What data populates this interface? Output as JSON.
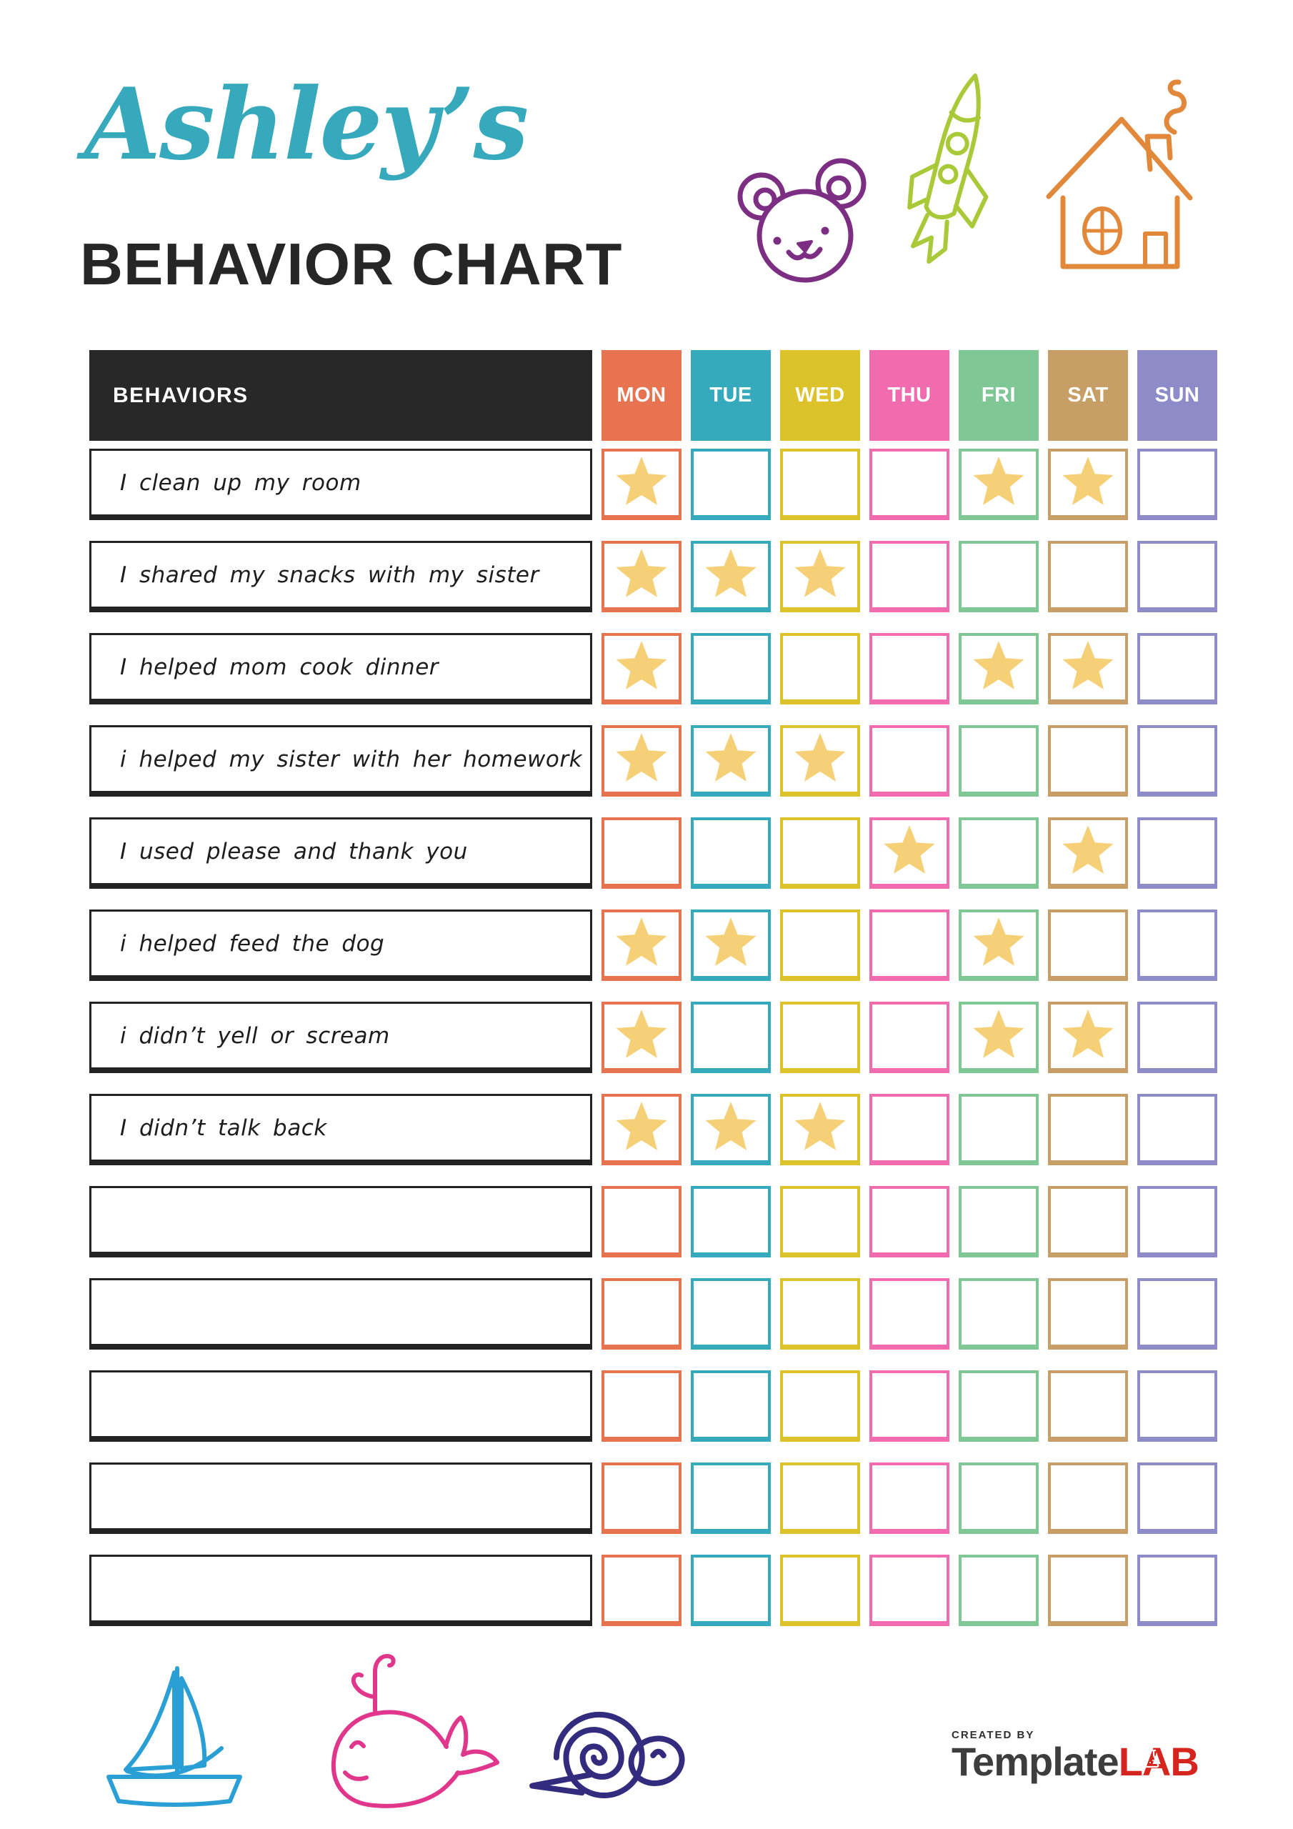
{
  "header": {
    "name_possessive": "Ashley’s",
    "title": "BEHAVIOR CHART"
  },
  "decorations": {
    "top_icons": [
      "bear-doodle",
      "rocket-doodle",
      "house-doodle"
    ],
    "bottom_icons": [
      "sailboat-doodle",
      "whale-doodle",
      "snail-doodle"
    ],
    "colors": {
      "title": "#36a9bc",
      "bear": "#7c2e83",
      "rocket": "#a9c938",
      "house": "#e2883b",
      "boat": "#2a9fd6",
      "whale": "#e0368c",
      "snail": "#332c7e"
    }
  },
  "table": {
    "behaviors_header": "BEHAVIORS",
    "header_bg": "#282828",
    "star_color": "#f5d077",
    "days": [
      {
        "label": "MON",
        "color": "#e87350"
      },
      {
        "label": "TUE",
        "color": "#35aabc"
      },
      {
        "label": "WED",
        "color": "#dcc32b"
      },
      {
        "label": "THU",
        "color": "#f16bae"
      },
      {
        "label": "FRI",
        "color": "#7fc795"
      },
      {
        "label": "SAT",
        "color": "#c79e66"
      },
      {
        "label": "SUN",
        "color": "#8d8cc8"
      }
    ],
    "rows": [
      {
        "label": "I clean up my room",
        "stars": [
          1,
          0,
          0,
          0,
          1,
          1,
          0
        ]
      },
      {
        "label": "I shared my snacks with my sister",
        "stars": [
          1,
          1,
          1,
          0,
          0,
          0,
          0
        ]
      },
      {
        "label": "I helped mom cook dinner",
        "stars": [
          1,
          0,
          0,
          0,
          1,
          1,
          0
        ]
      },
      {
        "label": "i helped my sister with her homework",
        "stars": [
          1,
          1,
          1,
          0,
          0,
          0,
          0
        ]
      },
      {
        "label": "I used please and thank you",
        "stars": [
          0,
          0,
          0,
          1,
          0,
          1,
          0
        ]
      },
      {
        "label": "i helped feed the dog",
        "stars": [
          1,
          1,
          0,
          0,
          1,
          0,
          0
        ]
      },
      {
        "label": "i didn’t yell or scream",
        "stars": [
          1,
          0,
          0,
          0,
          1,
          1,
          0
        ]
      },
      {
        "label": "I didn’t talk back",
        "stars": [
          1,
          1,
          1,
          0,
          0,
          0,
          0
        ]
      },
      {
        "label": "",
        "stars": [
          0,
          0,
          0,
          0,
          0,
          0,
          0
        ]
      },
      {
        "label": "",
        "stars": [
          0,
          0,
          0,
          0,
          0,
          0,
          0
        ]
      },
      {
        "label": "",
        "stars": [
          0,
          0,
          0,
          0,
          0,
          0,
          0
        ]
      },
      {
        "label": "",
        "stars": [
          0,
          0,
          0,
          0,
          0,
          0,
          0
        ]
      },
      {
        "label": "",
        "stars": [
          0,
          0,
          0,
          0,
          0,
          0,
          0
        ]
      }
    ]
  },
  "footer": {
    "created_by": "CREATED BY",
    "brand_primary": "Template",
    "brand_secondary": "LAB"
  }
}
